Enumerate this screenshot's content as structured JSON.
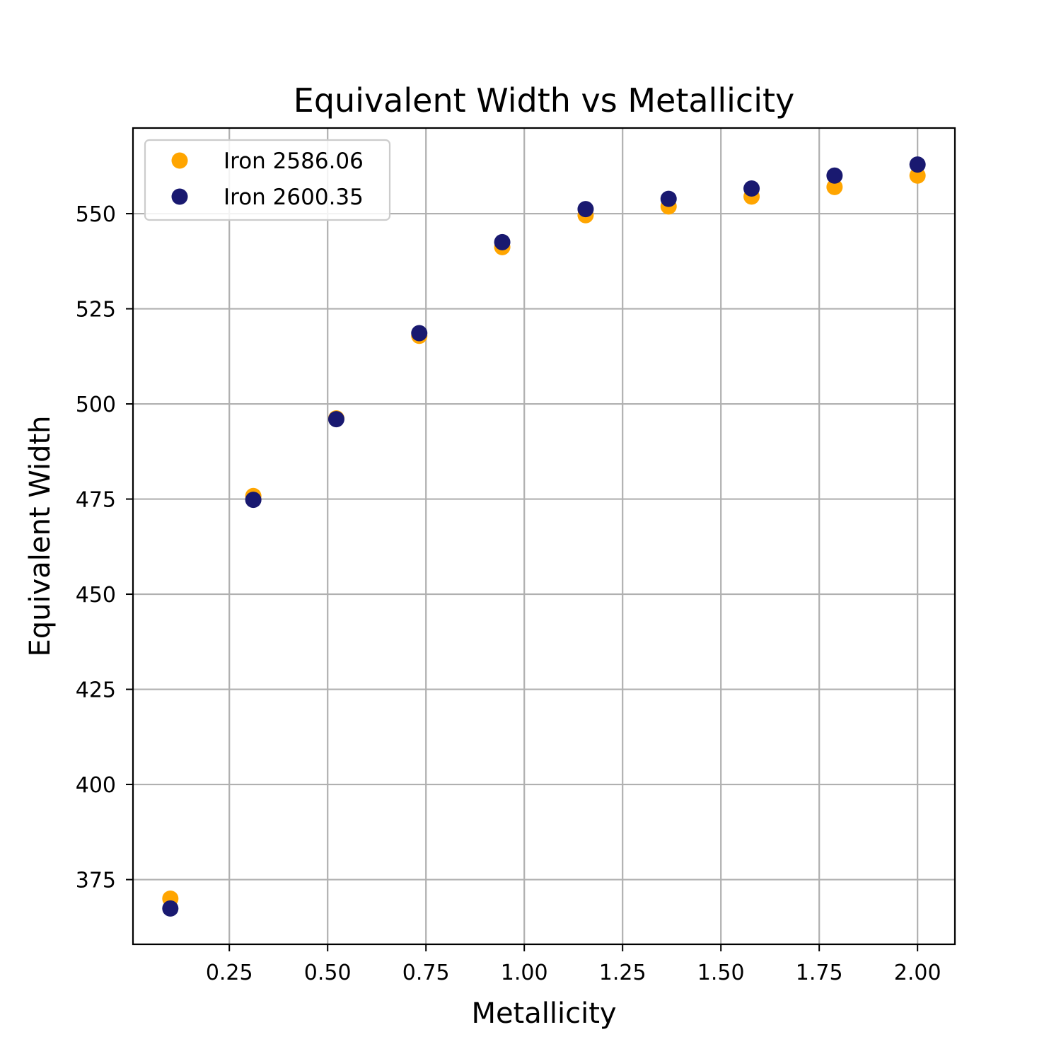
{
  "chart_data": {
    "type": "scatter",
    "title": "Equivalent Width vs Metallicity",
    "xlabel": "Metallicity",
    "ylabel": "Equivalent Width",
    "xlim": [
      0.005,
      2.095
    ],
    "ylim": [
      358,
      572.5
    ],
    "xticks": [
      0.25,
      0.5,
      0.75,
      1.0,
      1.25,
      1.5,
      1.75,
      2.0
    ],
    "xtick_labels": [
      "0.25",
      "0.50",
      "0.75",
      "1.00",
      "1.25",
      "1.50",
      "1.75",
      "2.00"
    ],
    "yticks": [
      375,
      400,
      425,
      450,
      475,
      500,
      525,
      550
    ],
    "ytick_labels": [
      "375",
      "400",
      "425",
      "450",
      "475",
      "500",
      "525",
      "550"
    ],
    "grid": true,
    "legend_position": "top-left",
    "x": [
      0.1,
      0.311,
      0.522,
      0.733,
      0.944,
      1.156,
      1.367,
      1.578,
      1.789,
      2.0
    ],
    "series": [
      {
        "name": "Iron 2586.06",
        "color": "#FFA500",
        "values": [
          370.0,
          475.8,
          496.2,
          517.9,
          541.2,
          549.6,
          551.9,
          554.5,
          557.0,
          560.0
        ]
      },
      {
        "name": "Iron 2600.35",
        "color": "#191970",
        "values": [
          367.4,
          474.8,
          496.0,
          518.6,
          542.5,
          551.2,
          553.9,
          556.6,
          560.0,
          562.9
        ]
      }
    ]
  }
}
